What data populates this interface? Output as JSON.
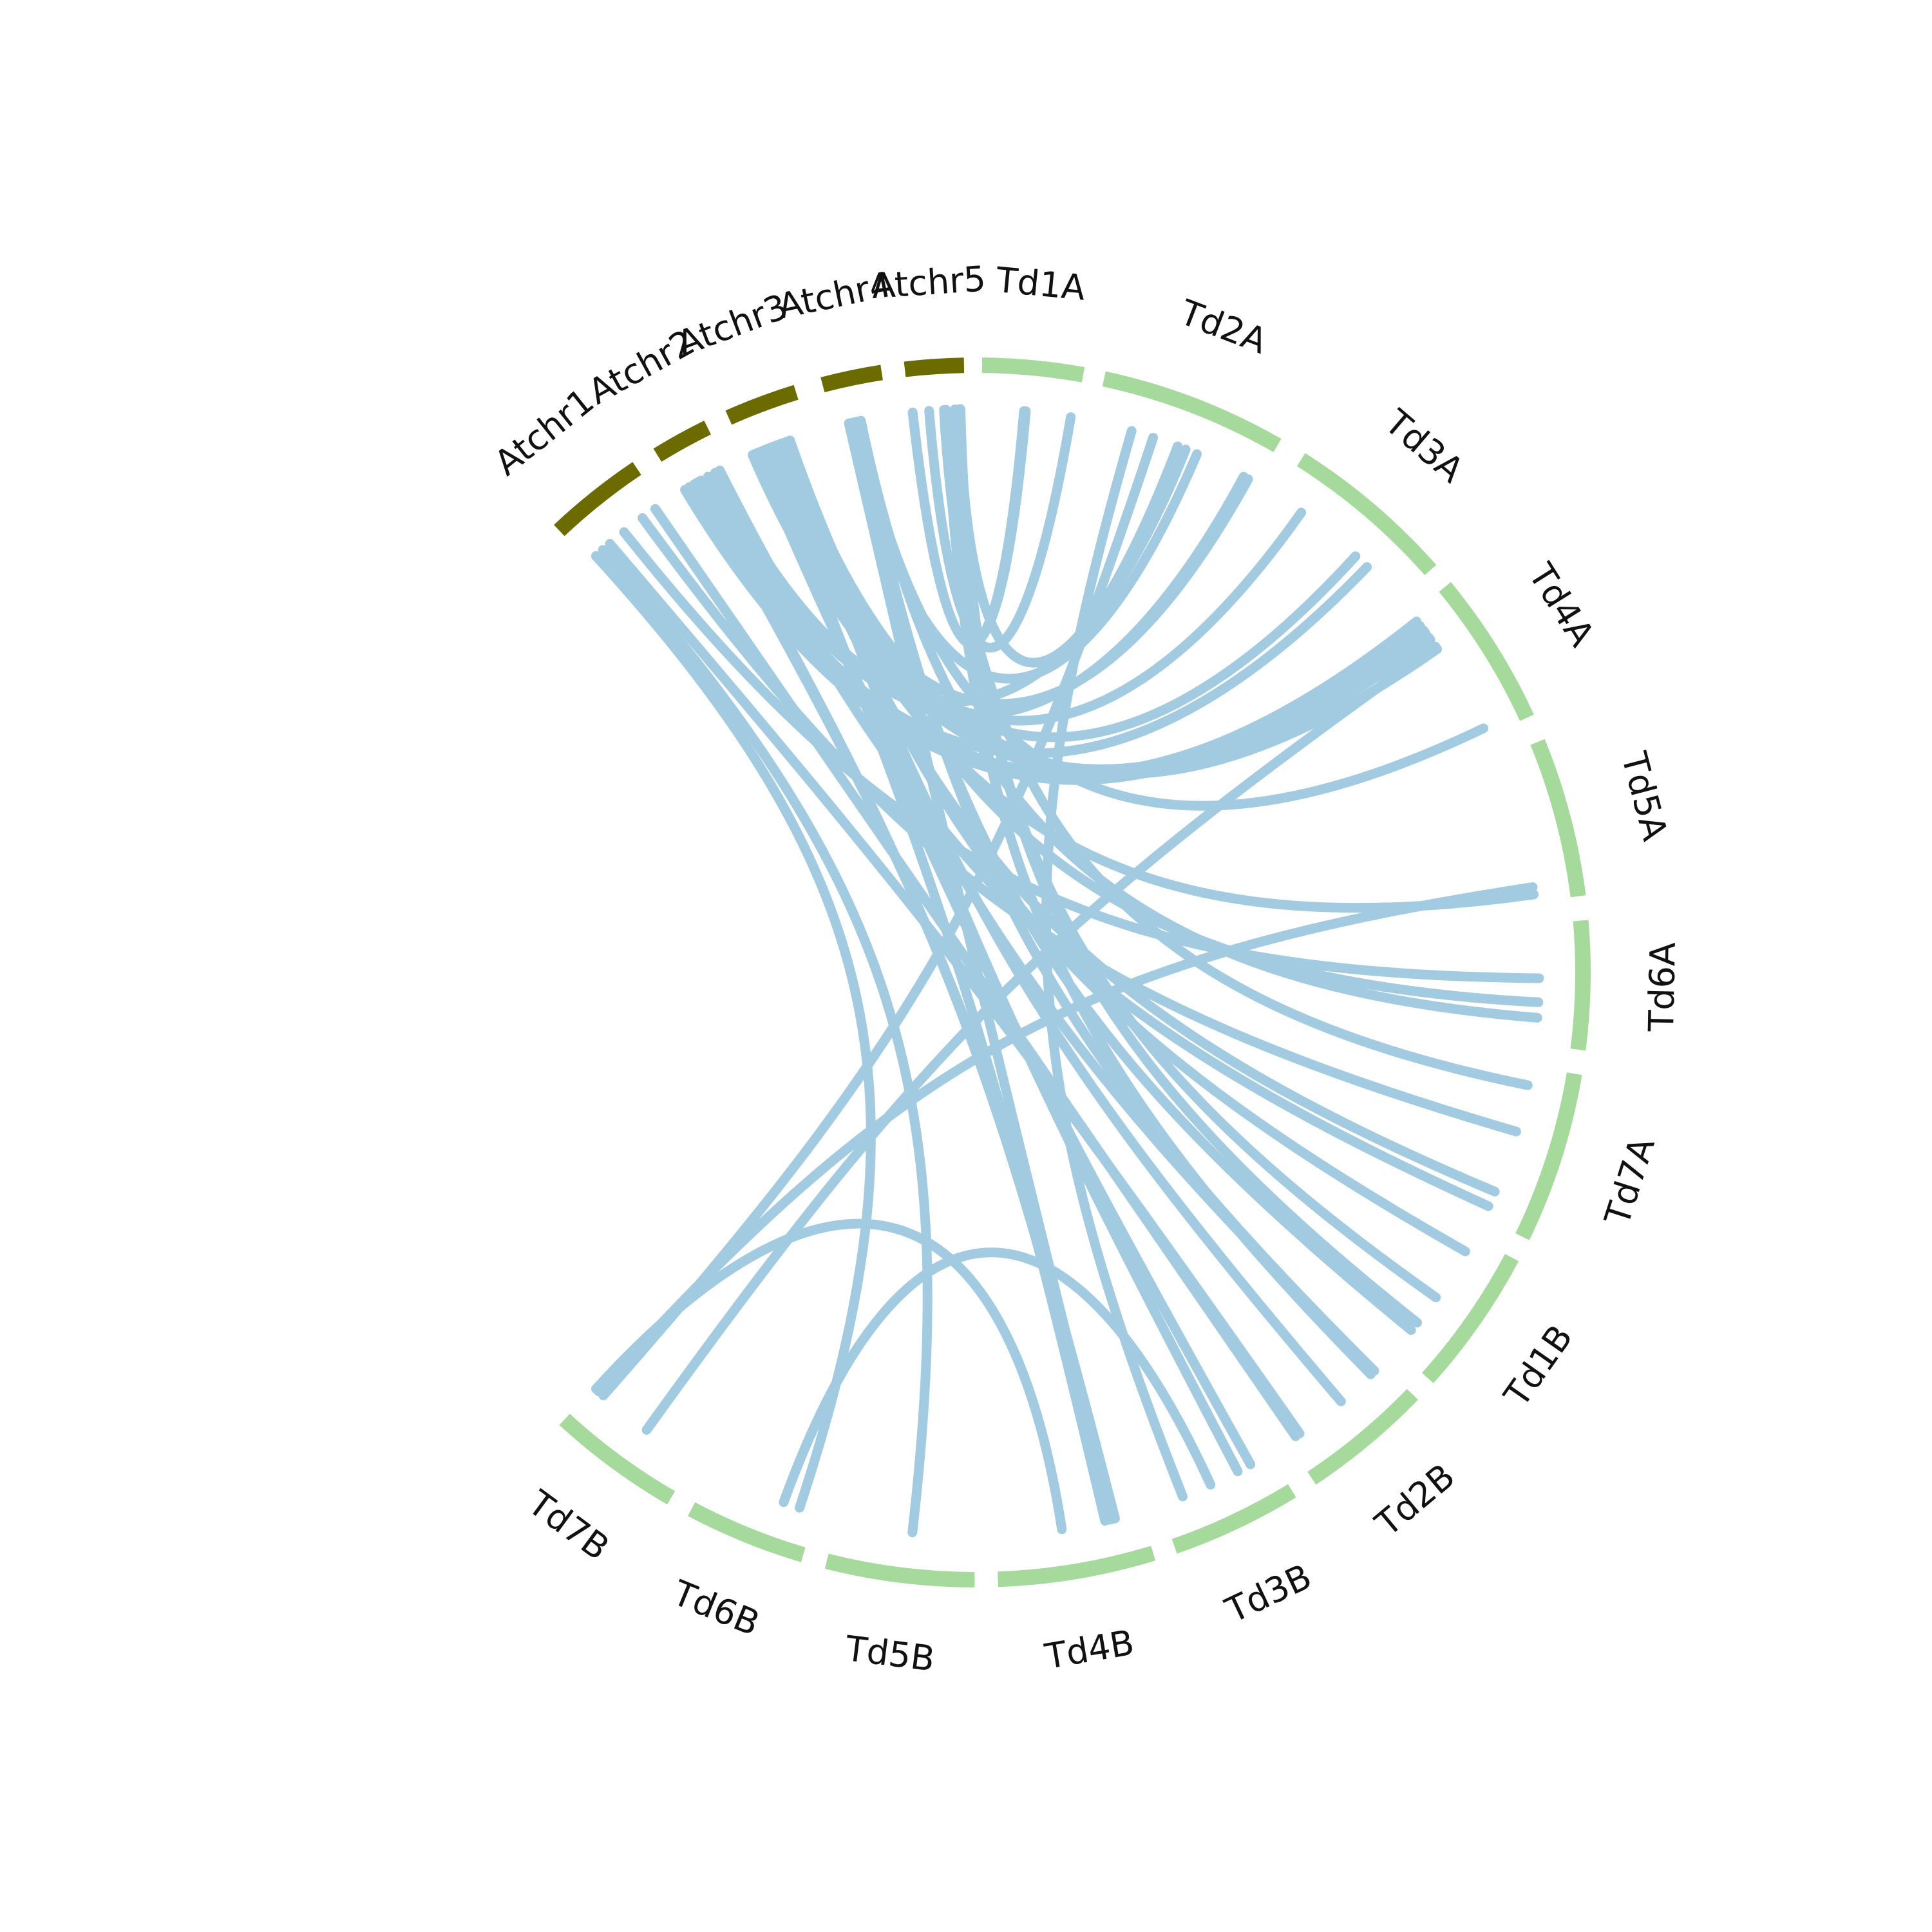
{
  "diagram": {
    "type": "circos-synteny",
    "colors": {
      "arabidopsis": "#6b6b00",
      "wheat": "#a6d99c",
      "link": "#a2cbe1",
      "label": "#111111",
      "background": "#ffffff"
    },
    "segments": [
      {
        "id": "Atchr1",
        "label": "Atchr1",
        "group": "arabidopsis"
      },
      {
        "id": "Atchr2",
        "label": "Atchr2",
        "group": "arabidopsis"
      },
      {
        "id": "Atchr3",
        "label": "Atchr3",
        "group": "arabidopsis"
      },
      {
        "id": "Atchr4",
        "label": "Atchr4",
        "group": "arabidopsis"
      },
      {
        "id": "Atchr5",
        "label": "Atchr5",
        "group": "arabidopsis"
      },
      {
        "id": "Td1A",
        "label": "Td1A",
        "group": "wheat"
      },
      {
        "id": "Td2A",
        "label": "Td2A",
        "group": "wheat"
      },
      {
        "id": "Td3A",
        "label": "Td3A",
        "group": "wheat"
      },
      {
        "id": "Td4A",
        "label": "Td4A",
        "group": "wheat"
      },
      {
        "id": "Td5A",
        "label": "Td5A",
        "group": "wheat"
      },
      {
        "id": "Td6A",
        "label": "Td6A",
        "group": "wheat"
      },
      {
        "id": "Td7A",
        "label": "Td7A",
        "group": "wheat"
      },
      {
        "id": "Td1B",
        "label": "Td1B",
        "group": "wheat"
      },
      {
        "id": "Td2B",
        "label": "Td2B",
        "group": "wheat"
      },
      {
        "id": "Td3B",
        "label": "Td3B",
        "group": "wheat"
      },
      {
        "id": "Td4B",
        "label": "Td4B",
        "group": "wheat"
      },
      {
        "id": "Td5B",
        "label": "Td5B",
        "group": "wheat"
      },
      {
        "id": "Td6B",
        "label": "Td6B",
        "group": "wheat"
      },
      {
        "id": "Td7B",
        "label": "Td7B",
        "group": "wheat"
      }
    ],
    "links": [
      [
        "Atchr5",
        0.05,
        "Td1A",
        0.45
      ],
      [
        "Atchr5",
        0.05,
        "Td1A",
        0.47
      ],
      [
        "Atchr5",
        0.35,
        "Td1A",
        0.95
      ],
      [
        "Atchr5",
        0.62,
        "Td7A",
        0.12
      ],
      [
        "Atchr5",
        0.66,
        "Td2B",
        0.12
      ],
      [
        "Atchr5",
        0.82,
        "Td1B",
        0.52
      ],
      [
        "Atchr5",
        0.92,
        "Td1B",
        0.75
      ],
      [
        "Atchr5",
        0.9,
        "Td2A",
        0.5
      ],
      [
        "Atchr4",
        0.35,
        "Td2A",
        0.62
      ],
      [
        "Atchr4",
        0.3,
        "Td1B",
        0.82
      ],
      [
        "Atchr4",
        0.4,
        "Td2B",
        0.08
      ],
      [
        "Atchr4",
        0.45,
        "Td4A",
        0.94
      ],
      [
        "Atchr4",
        0.5,
        "Td6A",
        0.78
      ],
      [
        "Atchr4",
        0.28,
        "Td4B",
        0.2
      ],
      [
        "Atchr3",
        0.1,
        "Td3A",
        0.18
      ],
      [
        "Atchr3",
        0.12,
        "Td4A",
        0.2
      ],
      [
        "Atchr3",
        0.18,
        "Td4A",
        0.14
      ],
      [
        "Atchr3",
        0.15,
        "Td2B",
        0.08
      ],
      [
        "Atchr3",
        0.2,
        "Td3B",
        0.18
      ],
      [
        "Atchr3",
        0.25,
        "Td3A",
        0.62
      ],
      [
        "Atchr3",
        0.3,
        "Td4B",
        0.25
      ],
      [
        "Atchr3",
        0.34,
        "Td2A",
        0.95
      ],
      [
        "Atchr3",
        0.38,
        "Td5A",
        0.95
      ],
      [
        "Atchr3",
        0.42,
        "Td7A",
        0.82
      ],
      [
        "Atchr3",
        0.46,
        "Td4A",
        0.22
      ],
      [
        "Atchr3",
        0.5,
        "Td1B",
        0.12
      ],
      [
        "Atchr3",
        0.55,
        "Td2B",
        0.45
      ],
      [
        "Atchr3",
        0.6,
        "Td3B",
        0.3
      ],
      [
        "Atchr3",
        0.65,
        "Td4A",
        0.3
      ],
      [
        "Atchr3",
        0.7,
        "Td6A",
        0.65
      ],
      [
        "Atchr2",
        0.1,
        "Td4A",
        0.1
      ],
      [
        "Atchr2",
        0.2,
        "Td4A",
        0.16
      ],
      [
        "Atchr2",
        0.3,
        "Td3A",
        0.72
      ],
      [
        "Atchr2",
        0.35,
        "Td4B",
        0.18
      ],
      [
        "Atchr2",
        0.4,
        "Td4B",
        0.22
      ],
      [
        "Atchr2",
        0.45,
        "Td4A",
        0.06
      ],
      [
        "Atchr2",
        0.6,
        "Td2A",
        0.92
      ],
      [
        "Atchr2",
        0.75,
        "Td2A",
        0.55
      ],
      [
        "Atchr2",
        0.85,
        "Td7A",
        0.92
      ],
      [
        "Atchr1",
        0.1,
        "Td6B",
        0.15
      ],
      [
        "Atchr1",
        0.2,
        "Td5B",
        0.45
      ],
      [
        "Atchr1",
        0.3,
        "Td2B",
        0.88
      ],
      [
        "Atchr1",
        0.5,
        "Td6A",
        0.45
      ],
      [
        "Atchr1",
        0.75,
        "Td7A",
        0.42
      ],
      [
        "Atchr1",
        0.92,
        "Td2B",
        0.92
      ],
      [
        "Td7B",
        0.45,
        "Td4A",
        0.28
      ],
      [
        "Td7B",
        0.95,
        "Td5A",
        0.9
      ],
      [
        "Td7B",
        0.9,
        "Td2A",
        0.35
      ],
      [
        "Td3B",
        0.55,
        "Td6B",
        0.3
      ],
      [
        "Td4B",
        0.55,
        "Td7B",
        0.98
      ],
      [
        "Td3B",
        0.8,
        "Td2A",
        0.22
      ]
    ]
  }
}
